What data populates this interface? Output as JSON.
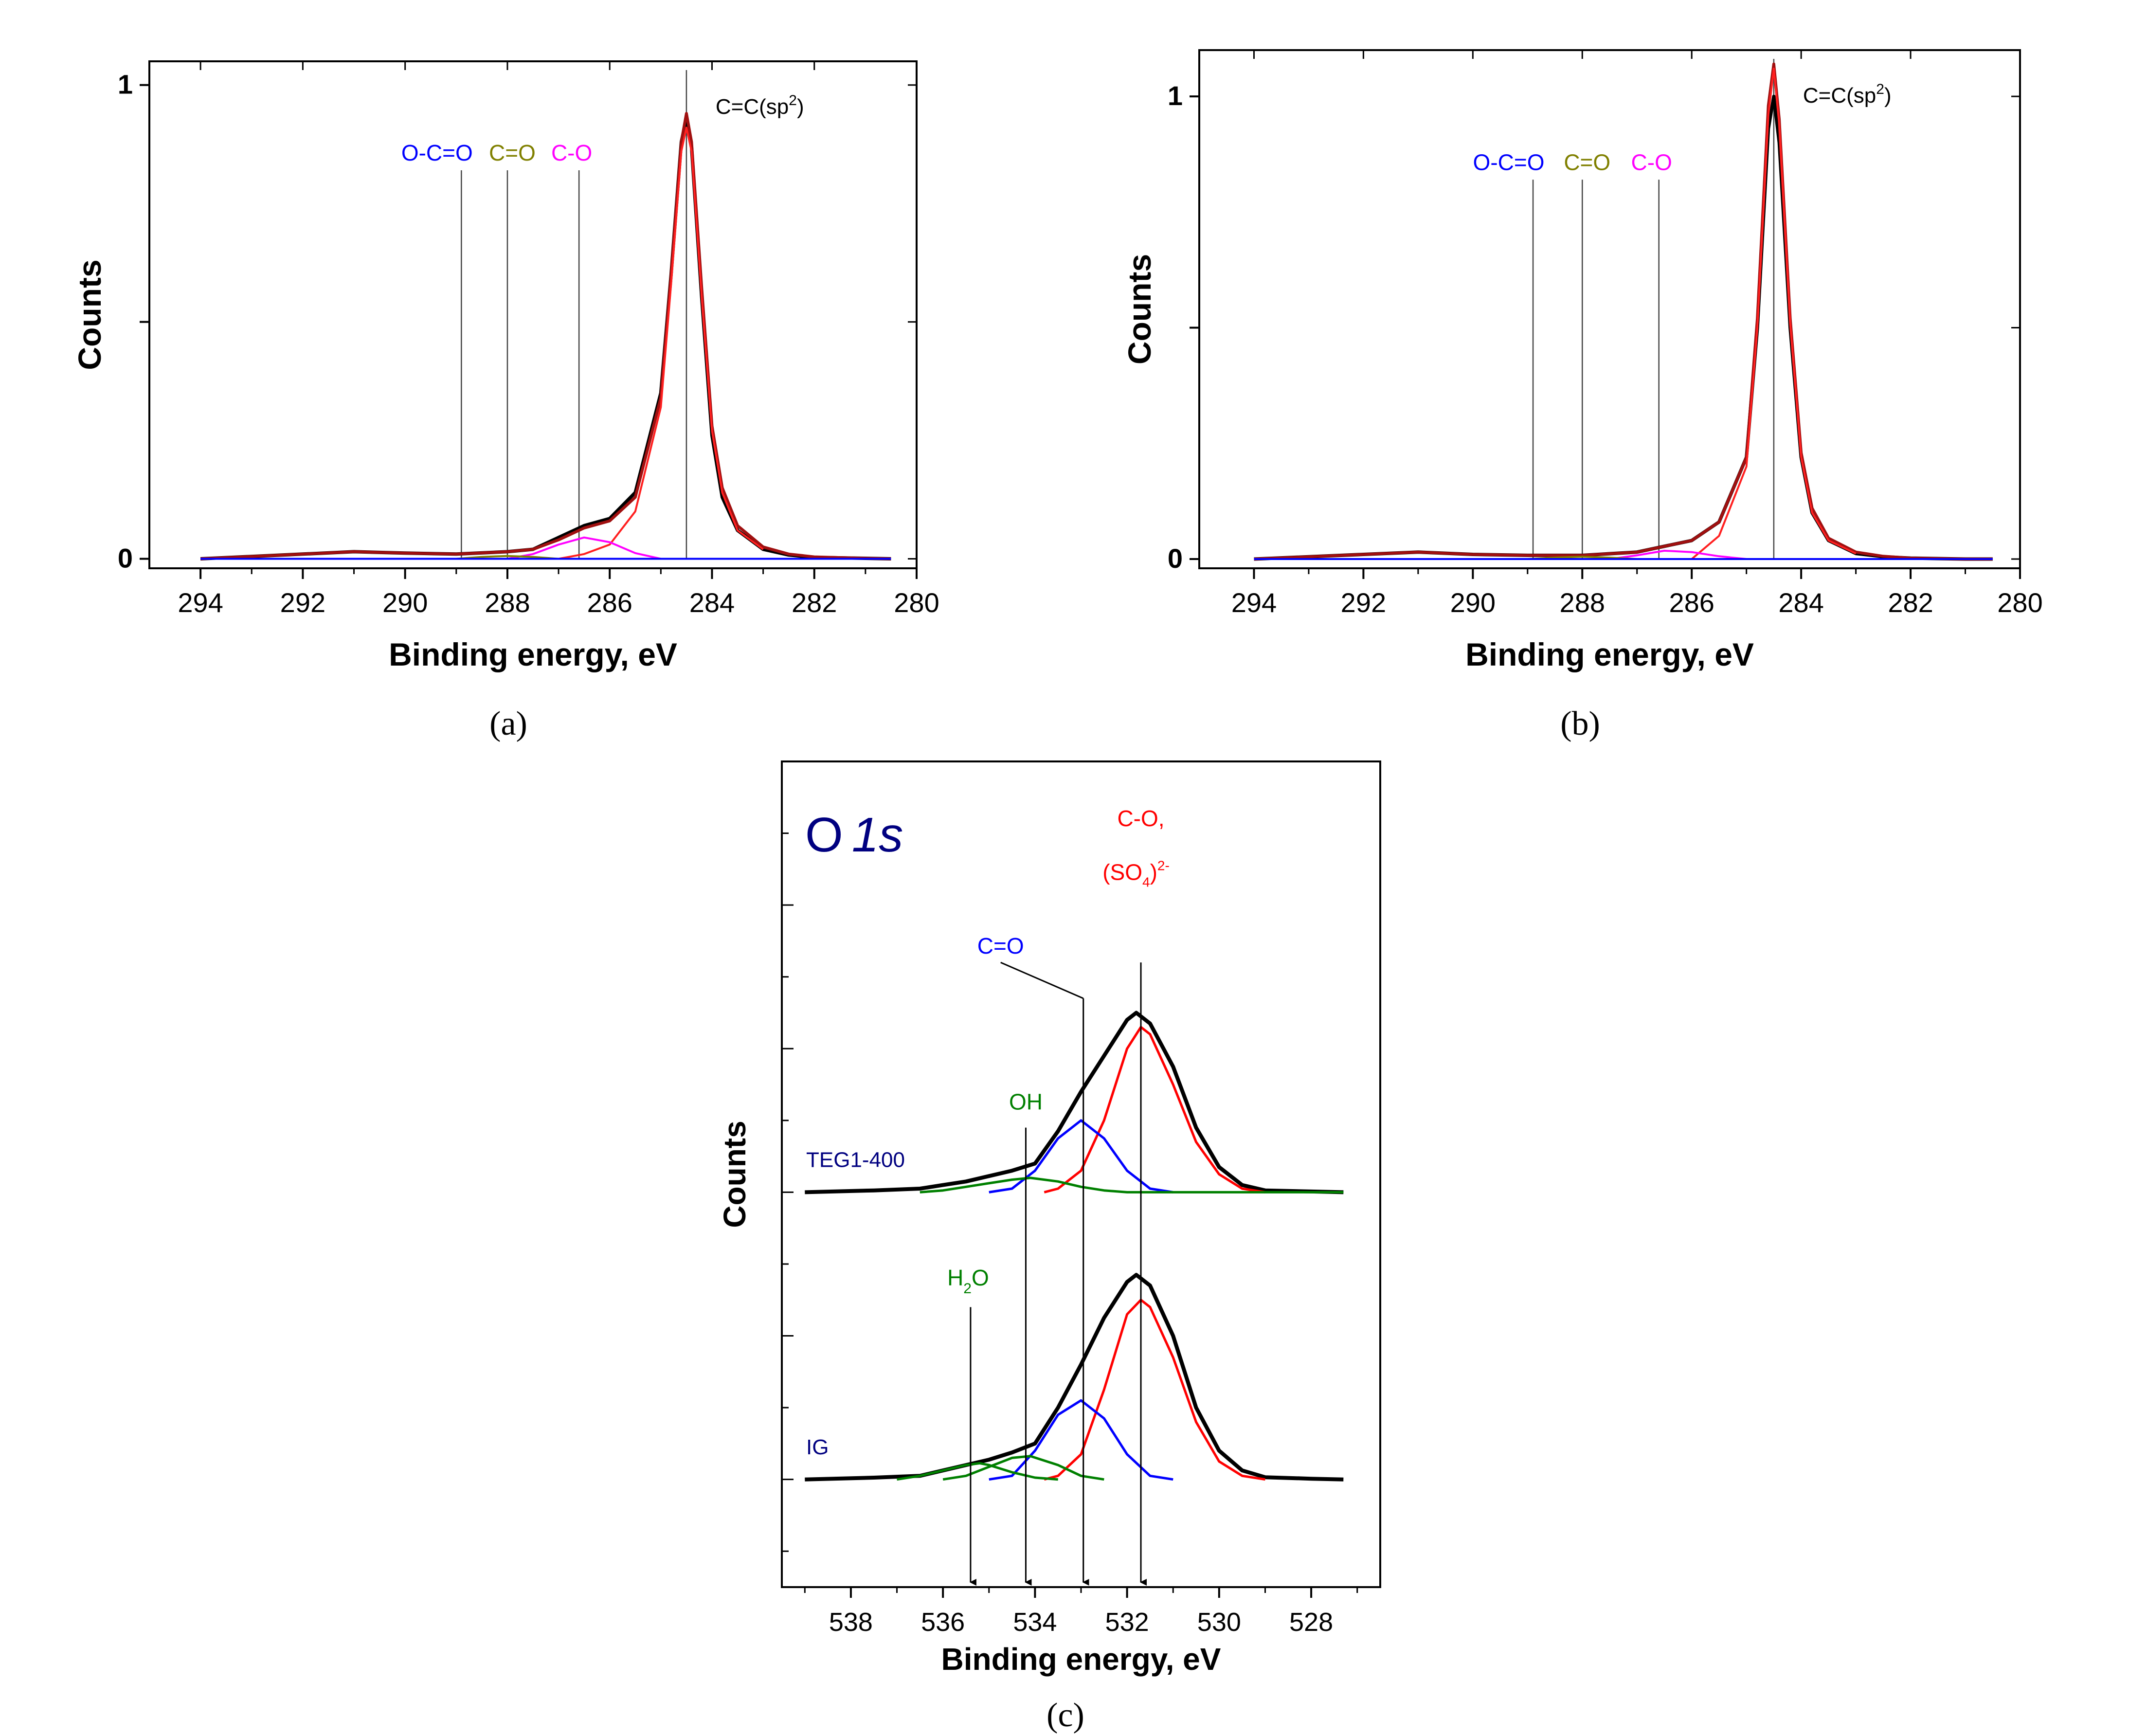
{
  "chart_data": [
    {
      "panel": "a",
      "caption": "(a)",
      "type": "line",
      "xlabel": "Binding energy, eV",
      "ylabel": "Counts",
      "xlim": [
        295,
        280
      ],
      "ylim": [
        -0.02,
        1.05
      ],
      "x_reversed": true,
      "xticks": [
        294,
        292,
        290,
        288,
        286,
        284,
        282,
        280
      ],
      "yticks": [
        {
          "value": 0,
          "label": "0"
        },
        {
          "value": 0.5,
          "label": ""
        },
        {
          "value": 1,
          "label": "1"
        }
      ],
      "grid": false,
      "series": [
        {
          "color": "#000000",
          "role": "measured",
          "x": [
            294,
            292,
            291,
            290,
            289,
            288,
            287.5,
            287,
            286.5,
            286,
            285.5,
            285,
            284.8,
            284.6,
            284.5,
            284.4,
            284.2,
            284,
            283.8,
            283.5,
            283,
            282.5,
            282,
            281,
            280.5
          ],
          "y": [
            0,
            0.01,
            0.015,
            0.012,
            0.01,
            0.015,
            0.02,
            0.045,
            0.07,
            0.085,
            0.14,
            0.35,
            0.6,
            0.88,
            0.93,
            0.87,
            0.55,
            0.26,
            0.13,
            0.06,
            0.02,
            0.008,
            0.003,
            0.001,
            0
          ]
        },
        {
          "color": "#a01010",
          "role": "envelope",
          "x": [
            294,
            292,
            291,
            290,
            289,
            288,
            287.5,
            287,
            286.5,
            286,
            285.5,
            285,
            284.8,
            284.6,
            284.5,
            284.4,
            284.2,
            284,
            283.8,
            283.5,
            283,
            282.5,
            282,
            281,
            280.5
          ],
          "y": [
            0,
            0.01,
            0.015,
            0.012,
            0.01,
            0.015,
            0.02,
            0.04,
            0.065,
            0.08,
            0.13,
            0.34,
            0.6,
            0.88,
            0.94,
            0.88,
            0.57,
            0.28,
            0.15,
            0.07,
            0.025,
            0.01,
            0.004,
            0.001,
            0
          ]
        },
        {
          "color": "#ff2020",
          "role": "component",
          "x": [
            287,
            286.5,
            286,
            285.5,
            285,
            284.8,
            284.6,
            284.5,
            284.4,
            284.2,
            284,
            283.8,
            283.5,
            283
          ],
          "y": [
            0,
            0.01,
            0.03,
            0.1,
            0.32,
            0.58,
            0.86,
            0.91,
            0.86,
            0.55,
            0.27,
            0.14,
            0.06,
            0.02
          ]
        },
        {
          "color": "#ff00ff",
          "role": "component",
          "x": [
            288,
            287.5,
            287,
            286.5,
            286,
            285.5,
            285
          ],
          "y": [
            0,
            0.01,
            0.03,
            0.045,
            0.035,
            0.012,
            0
          ]
        },
        {
          "color": "#808000",
          "role": "component",
          "x": [
            289,
            288.5,
            288,
            287.5,
            287
          ],
          "y": [
            0,
            0.004,
            0.006,
            0.004,
            0
          ]
        },
        {
          "color": "#0000ff",
          "role": "baseline",
          "x": [
            294,
            280.5
          ],
          "y": [
            0,
            0
          ]
        }
      ],
      "annotations": [
        {
          "label": "O-C=O",
          "x": 288.9,
          "color": "#0000ff"
        },
        {
          "label": "C=O",
          "x": 288.0,
          "color": "#808000"
        },
        {
          "label": "C-O",
          "x": 286.6,
          "color": "#ff00ff"
        },
        {
          "label": "C=C(sp",
          "sup": "2",
          "tail": ")",
          "x": 284.5,
          "color": "#000000"
        }
      ]
    },
    {
      "panel": "b",
      "caption": "(b)",
      "type": "line",
      "xlabel": "Binding energy, eV",
      "ylabel": "Counts",
      "xlim": [
        295,
        280
      ],
      "ylim": [
        -0.02,
        1.1
      ],
      "x_reversed": true,
      "xticks": [
        294,
        292,
        290,
        288,
        286,
        284,
        282,
        280
      ],
      "yticks": [
        {
          "value": 0,
          "label": "0"
        },
        {
          "value": 0.5,
          "label": ""
        },
        {
          "value": 1,
          "label": "1"
        }
      ],
      "grid": false,
      "series": [
        {
          "color": "#000000",
          "role": "measured",
          "x": [
            294,
            292,
            291,
            290,
            289,
            288,
            287,
            286,
            285.5,
            285,
            284.8,
            284.6,
            284.5,
            284.4,
            284.2,
            284,
            283.8,
            283.5,
            283,
            282.5,
            282,
            281,
            280.5
          ],
          "y": [
            0,
            0.01,
            0.015,
            0.01,
            0.008,
            0.008,
            0.015,
            0.04,
            0.08,
            0.22,
            0.5,
            0.93,
            1.0,
            0.9,
            0.5,
            0.22,
            0.1,
            0.04,
            0.012,
            0.005,
            0.002,
            0,
            0
          ]
        },
        {
          "color": "#a01010",
          "role": "envelope",
          "x": [
            294,
            292,
            291,
            290,
            289,
            288,
            287,
            286,
            285.5,
            285,
            284.8,
            284.6,
            284.5,
            284.4,
            284.2,
            284,
            283.8,
            283.5,
            283,
            282.5,
            282,
            281,
            280.5
          ],
          "y": [
            0,
            0.01,
            0.015,
            0.01,
            0.008,
            0.008,
            0.015,
            0.04,
            0.08,
            0.22,
            0.52,
            0.98,
            1.07,
            0.95,
            0.52,
            0.23,
            0.11,
            0.045,
            0.015,
            0.006,
            0.002,
            0,
            0
          ]
        },
        {
          "color": "#ff2020",
          "role": "component",
          "x": [
            286,
            285.5,
            285,
            284.8,
            284.6,
            284.5,
            284.4,
            284.2,
            284,
            283.8,
            283.5,
            283
          ],
          "y": [
            0,
            0.05,
            0.2,
            0.5,
            0.96,
            1.06,
            0.94,
            0.51,
            0.22,
            0.1,
            0.04,
            0.012
          ]
        },
        {
          "color": "#ff00ff",
          "role": "component",
          "x": [
            287.5,
            287,
            286.5,
            286,
            285.5,
            285
          ],
          "y": [
            0,
            0.008,
            0.018,
            0.015,
            0.006,
            0
          ]
        },
        {
          "color": "#808000",
          "role": "component",
          "x": [
            289,
            288.5,
            288,
            287.5,
            287
          ],
          "y": [
            0,
            0.003,
            0.005,
            0.003,
            0
          ]
        },
        {
          "color": "#0000ff",
          "role": "baseline",
          "x": [
            294,
            280.5
          ],
          "y": [
            0,
            0
          ]
        }
      ],
      "annotations": [
        {
          "label": "O-C=O",
          "x": 288.9,
          "color": "#0000ff"
        },
        {
          "label": "C=O",
          "x": 288.0,
          "color": "#808000"
        },
        {
          "label": "C-O",
          "x": 286.6,
          "color": "#ff00ff"
        },
        {
          "label": "C=C(sp",
          "sup": "2",
          "tail": ")",
          "x": 284.5,
          "color": "#000000"
        }
      ]
    },
    {
      "panel": "c",
      "caption": "(c)",
      "type": "line",
      "panel_title_plain": "O",
      "panel_title_italic": "1s",
      "xlabel": "Binding energy, eV",
      "ylabel": "Counts",
      "xlim": [
        539.5,
        526.5
      ],
      "ylim": [
        0,
        2.3
      ],
      "x_reversed": true,
      "xticks": [
        538,
        536,
        534,
        532,
        530,
        528
      ],
      "grid": false,
      "samples": [
        {
          "label": "TEG1-400",
          "offset": 1.1,
          "series": [
            {
              "color": "#000000",
              "role": "measured",
              "x": [
                539,
                537.5,
                536.5,
                536,
                535.5,
                535,
                534.5,
                534,
                533.5,
                533,
                532.5,
                532,
                531.8,
                531.5,
                531,
                530.5,
                530,
                529.5,
                529,
                528,
                527.3
              ],
              "y": [
                0,
                0.005,
                0.01,
                0.02,
                0.03,
                0.045,
                0.06,
                0.08,
                0.17,
                0.28,
                0.38,
                0.48,
                0.5,
                0.47,
                0.35,
                0.18,
                0.07,
                0.02,
                0.005,
                0.002,
                0
              ]
            },
            {
              "color": "#ff0000",
              "role": "component",
              "x": [
                533.8,
                533.5,
                533,
                532.5,
                532,
                531.7,
                531.5,
                531,
                530.5,
                530,
                529.5,
                529
              ],
              "y": [
                0,
                0.01,
                0.06,
                0.2,
                0.4,
                0.46,
                0.44,
                0.3,
                0.14,
                0.05,
                0.01,
                0
              ]
            },
            {
              "color": "#0000ff",
              "role": "component",
              "x": [
                535,
                534.5,
                534,
                533.5,
                533,
                532.5,
                532,
                531.5,
                531
              ],
              "y": [
                0,
                0.01,
                0.06,
                0.15,
                0.2,
                0.15,
                0.06,
                0.01,
                0
              ]
            },
            {
              "color": "#008000",
              "role": "component",
              "x": [
                536.5,
                536,
                535.5,
                535,
                534.5,
                534.1,
                533.5,
                533,
                532.5,
                532,
                531,
                529,
                527.3
              ],
              "y": [
                0,
                0.005,
                0.015,
                0.025,
                0.035,
                0.04,
                0.03,
                0.015,
                0.005,
                0,
                0,
                0,
                0
              ]
            }
          ]
        },
        {
          "label": "IG",
          "offset": 0.3,
          "series": [
            {
              "color": "#000000",
              "role": "measured",
              "x": [
                539,
                537.5,
                536.5,
                536,
                535.5,
                535,
                534.5,
                534,
                533.5,
                533,
                532.5,
                532,
                531.8,
                531.5,
                531,
                530.5,
                530,
                529.5,
                529,
                528,
                527.3
              ],
              "y": [
                0,
                0.005,
                0.01,
                0.025,
                0.04,
                0.055,
                0.075,
                0.1,
                0.2,
                0.32,
                0.45,
                0.55,
                0.57,
                0.54,
                0.4,
                0.2,
                0.08,
                0.025,
                0.006,
                0.002,
                0
              ]
            },
            {
              "color": "#ff0000",
              "role": "component",
              "x": [
                533.8,
                533.5,
                533,
                532.5,
                532,
                531.7,
                531.5,
                531,
                530.5,
                530,
                529.5,
                529
              ],
              "y": [
                0,
                0.01,
                0.07,
                0.25,
                0.46,
                0.5,
                0.48,
                0.34,
                0.16,
                0.05,
                0.01,
                0
              ]
            },
            {
              "color": "#0000ff",
              "role": "component",
              "x": [
                535,
                534.5,
                534,
                533.5,
                533,
                532.5,
                532,
                531.5,
                531
              ],
              "y": [
                0,
                0.01,
                0.08,
                0.18,
                0.22,
                0.17,
                0.07,
                0.01,
                0
              ]
            },
            {
              "color": "#008000",
              "role": "component",
              "x": [
                536,
                535.5,
                535,
                534.5,
                534.1,
                533.5,
                533,
                532.5
              ],
              "y": [
                0,
                0.01,
                0.035,
                0.06,
                0.065,
                0.04,
                0.01,
                0
              ]
            },
            {
              "color": "#008000",
              "role": "component",
              "x": [
                537,
                536.5,
                536,
                535.5,
                535.2,
                535,
                534.5,
                534,
                533.5
              ],
              "y": [
                0,
                0.01,
                0.025,
                0.04,
                0.045,
                0.04,
                0.02,
                0.005,
                0
              ]
            }
          ]
        }
      ],
      "annotations": [
        {
          "label": "H",
          "sub": "2",
          "tail": "O",
          "x": 535.4,
          "color": "#008000"
        },
        {
          "label": "OH",
          "x": 534.2,
          "color": "#008000"
        },
        {
          "label": "C=O",
          "x": 532.95,
          "color": "#0000ff"
        },
        {
          "label_line1": "C-O,",
          "label_line2": "(SO",
          "sub": "4",
          "tail": ")",
          "sup": "2-",
          "x": 531.7,
          "color": "#ff0000"
        }
      ]
    }
  ]
}
